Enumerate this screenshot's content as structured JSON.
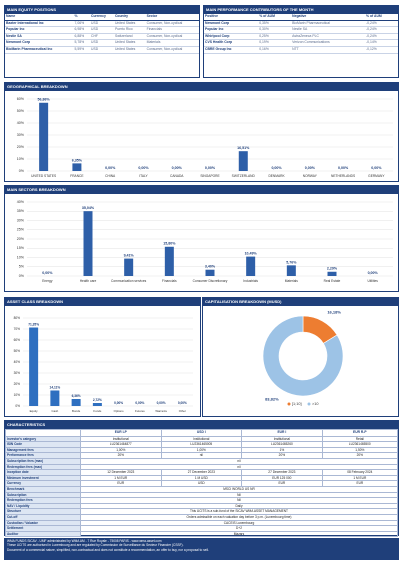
{
  "equity_positions": {
    "title": "MAIN EQUITY POSITIONS",
    "columns": [
      "Name",
      "%",
      "Currency",
      "Country",
      "Sector"
    ],
    "rows": [
      [
        "Baxter International Inc",
        "7,06%",
        "USD",
        "United States",
        "Consumer, Non-cyclical"
      ],
      [
        "Popular Inc",
        "6,98%",
        "USD",
        "Puerto Rico",
        "Financials"
      ],
      [
        "Nestle SA",
        "6,88%",
        "CHF",
        "Switzerland",
        "Consumer, Non-cyclical"
      ],
      [
        "Newmont Corp",
        "5,78%",
        "USD",
        "United States",
        "Materials"
      ],
      [
        "BioMarin Pharmaceutical Inc",
        "5,59%",
        "USD",
        "United States",
        "Consumer, Non-cyclical"
      ]
    ]
  },
  "contributors": {
    "title": "MAIN PERFORMANCE CONTRIBUTORS OF THE MONTH",
    "columns": [
      "Positive",
      "% of AUM",
      "Negative",
      "% of AUM"
    ],
    "rows": [
      [
        "Newmont Corp",
        "0,35%",
        "BioMarin Pharmaceutical",
        "-0,24%"
      ],
      [
        "Popular Inc",
        "0,30%",
        "Nestle SA",
        "-0,24%"
      ],
      [
        "Whirlpool Corp",
        "0,25%",
        "AstraZeneca PLC",
        "-0,24%"
      ],
      [
        "CVS Health Corp",
        "0,19%",
        "Verizon Communications",
        "-0,14%"
      ],
      [
        "CBRE Group Inc",
        "0,16%",
        "NTT",
        "-0,12%"
      ]
    ]
  },
  "chart_data": [
    {
      "type": "bar",
      "title": "GEOGRAPHICAL BREAKDOWN",
      "color": "#2e5fa8",
      "categories": [
        "UNITED STATES",
        "FRANCE",
        "CHINA",
        "ITALY",
        "CANADA",
        "SINGAPORE",
        "SWITZERLAND",
        "DENMARK",
        "NORWAY",
        "NETHERLANDS",
        "GERMANY"
      ],
      "values": [
        56.86,
        6.35,
        0,
        0,
        0,
        0,
        16.51,
        0,
        0,
        0,
        0
      ],
      "value_labels": [
        "56,86%",
        "6,35%",
        "0,00%",
        "0,00%",
        "0,00%",
        "0,00%",
        "16,51%",
        "0,00%",
        "0,00%",
        "0,00%",
        "0,00%"
      ],
      "ylim": [
        0,
        60
      ],
      "yticks": [
        {
          "value": 0,
          "label": "0%"
        },
        {
          "value": 10,
          "label": "10%"
        },
        {
          "value": 20,
          "label": "20%"
        },
        {
          "value": 30,
          "label": "30%"
        },
        {
          "value": 40,
          "label": "40%"
        },
        {
          "value": 50,
          "label": "50%"
        },
        {
          "value": 60,
          "label": "60%"
        }
      ],
      "grid": true
    },
    {
      "type": "bar",
      "title": "MAIN SECTORS BREAKDOWN",
      "color": "#2e5fa8",
      "categories": [
        "Energy",
        "Health care",
        "Communication services",
        "Financials",
        "Consumer Discretionary",
        "Industrials",
        "Materials",
        "Real Estate",
        "Utilities"
      ],
      "values": [
        0,
        35.04,
        9.41,
        15.8,
        3.4,
        10.49,
        5.76,
        2.29,
        0
      ],
      "value_labels": [
        "0,00%",
        "35,04%",
        "9,41%",
        "15,80%",
        "3,40%",
        "10,49%",
        "5,76%",
        "2,29%",
        "0,00%"
      ],
      "ylim": [
        0,
        40
      ],
      "yticks": [
        {
          "value": 0,
          "label": "0%"
        },
        {
          "value": 5,
          "label": "5%"
        },
        {
          "value": 10,
          "label": "10%"
        },
        {
          "value": 15,
          "label": "15%"
        },
        {
          "value": 20,
          "label": "20%"
        },
        {
          "value": 25,
          "label": "25%"
        },
        {
          "value": 30,
          "label": "30%"
        },
        {
          "value": 35,
          "label": "35%"
        },
        {
          "value": 40,
          "label": "40%"
        }
      ],
      "grid": true
    },
    {
      "type": "bar",
      "title": "ASSET CLASS BREAKDOWN",
      "color": "#2e6fc0",
      "categories": [
        "Equity",
        "Cash",
        "Bonds",
        "Funds",
        "Options",
        "Futures",
        "Warrants",
        "Other"
      ],
      "values": [
        71.35,
        14.11,
        6.36,
        2.72,
        0,
        0,
        0,
        0
      ],
      "value_labels": [
        "71,35%",
        "14,11%",
        "6,36%",
        "2,72%",
        "0,00%",
        "0,00%",
        "0,00%",
        "0,00%"
      ],
      "ylim": [
        0,
        80
      ],
      "yticks": [
        {
          "value": 0,
          "label": "0%"
        },
        {
          "value": 10,
          "label": "10%"
        },
        {
          "value": 20,
          "label": "20%"
        },
        {
          "value": 30,
          "label": "30%"
        },
        {
          "value": 40,
          "label": "40%"
        },
        {
          "value": 50,
          "label": "50%"
        },
        {
          "value": 60,
          "label": "60%"
        },
        {
          "value": 70,
          "label": "70%"
        },
        {
          "value": 80,
          "label": "80%"
        }
      ],
      "grid": true
    },
    {
      "type": "pie",
      "title": "CAPITALISATION BREAKDOWN (MUSD)",
      "categories": [
        "]1;10]",
        ">10"
      ],
      "values": [
        16.18,
        83.82
      ],
      "value_labels": [
        "16,18%",
        "83,82%"
      ],
      "colors": [
        "#ed7d31",
        "#9dc3e6"
      ],
      "legend": "bottom"
    }
  ],
  "characteristics": {
    "title": "CHARACTERISTICS",
    "columns": [
      "EUR I-P",
      "USD I",
      "EUR I",
      "EUR R-P"
    ],
    "rows": [
      [
        "Investor's category",
        "Institutional",
        "Institutional",
        "Institutional",
        "Retail"
      ],
      [
        "ISIN Code",
        "LU2361464877",
        "LU2361465005",
        "LU2361465260",
        "LU2361465500"
      ],
      [
        "Management fees",
        "1,00%",
        "1,00%",
        "1%",
        "1,50%"
      ],
      [
        "Performance fees",
        "20%",
        "nil",
        "20%",
        "20%"
      ],
      [
        "Subscription fees (max)",
        "nil"
      ],
      [
        "Redemption fees (max)",
        "nil"
      ],
      [
        "Inception date",
        "12 December 2023",
        "27 December 2023",
        "27 December 2023",
        "08 February 2024"
      ],
      [
        "Minimum investment",
        "1 M EUR",
        "1 M USD",
        "EUR 125 000",
        "1 M EUR"
      ],
      [
        "Currency",
        "EUR",
        "USD",
        "EUR",
        "EUR"
      ],
      [
        "Benchmark",
        "MSCI WORLD US NR"
      ],
      [
        "Subscription",
        "Nil"
      ],
      [
        "Redemption fees",
        "Nil"
      ],
      [
        "NAV / Liquidity",
        "Daily"
      ],
      [
        "Structure",
        "This UCITS is a sub-fund of the SICAV WMA ASSET MANAGEMENT"
      ],
      [
        "Cut-off",
        "Orders admissible on each valuation day before 3 p.m. (Luxembourg time)"
      ],
      [
        "Custodian / Valuator",
        "CACEIS Luxembourg"
      ],
      [
        "Settlement",
        "D+2"
      ],
      [
        "Auditor",
        "Mazars"
      ]
    ]
  },
  "footer": {
    "lines": [
      "WMA FUNDS SICAV - UMF administrated by WMA AM - 7 Rue Royale - 75008 PARIS - www.wma-asset.com",
      "These UCITS are authorised in Luxembourg and are regulated by Commission de Surveillance du Secteur Financier (CSSF).",
      "Document of a commercial nature, simplified, non-contractual and does not constitute a recommendation, an offer to buy, nor a proposal to sell."
    ]
  }
}
